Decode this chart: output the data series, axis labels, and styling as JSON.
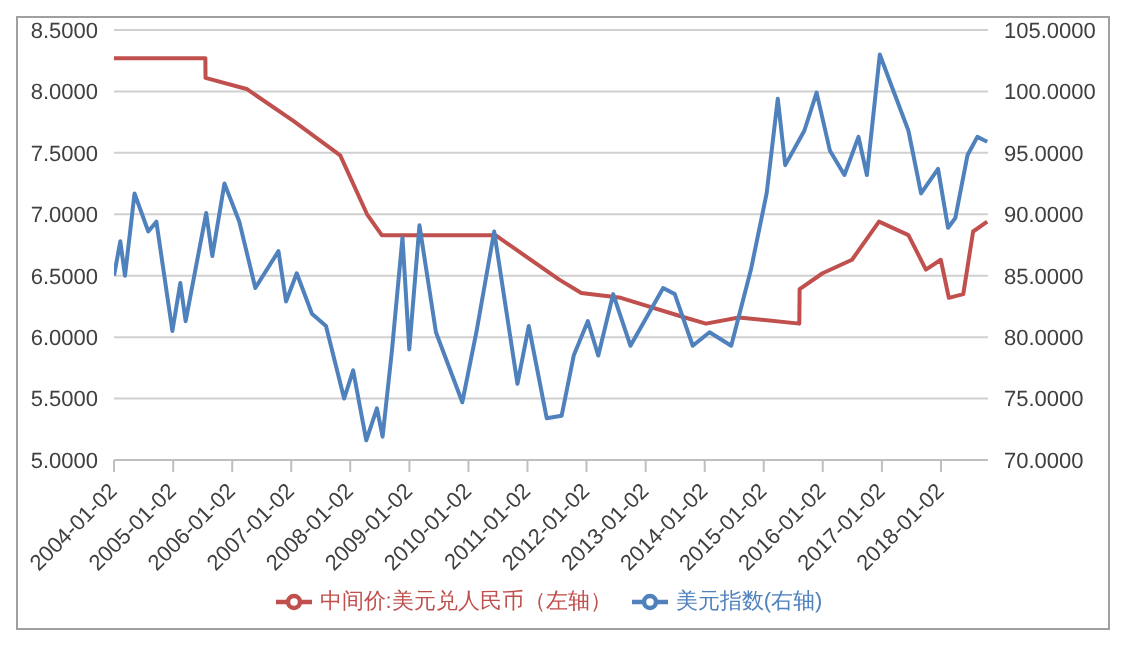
{
  "chart_data": {
    "type": "line",
    "xlim": [
      "2004-01-02",
      "2018-10-20"
    ],
    "xticks": [
      "2004-01-02",
      "2005-01-02",
      "2006-01-02",
      "2007-01-02",
      "2008-01-02",
      "2009-01-02",
      "2010-01-02",
      "2011-01-02",
      "2012-01-02",
      "2013-01-02",
      "2014-01-02",
      "2015-01-02",
      "2016-01-02",
      "2017-01-02",
      "2018-01-02"
    ],
    "ylim": [
      5,
      8.5
    ],
    "yticks": [
      {
        "value": 5,
        "label": "5.0000"
      },
      {
        "value": 5.5,
        "label": "5.5000"
      },
      {
        "value": 6,
        "label": "6.0000"
      },
      {
        "value": 6.5,
        "label": "6.5000"
      },
      {
        "value": 7,
        "label": "7.0000"
      },
      {
        "value": 7.5,
        "label": "7.5000"
      },
      {
        "value": 8,
        "label": "8.0000"
      },
      {
        "value": 8.5,
        "label": "8.5000"
      }
    ],
    "y2lim": [
      70,
      105
    ],
    "y2ticks": [
      {
        "value": 70,
        "label": "70.0000"
      },
      {
        "value": 75,
        "label": "75.0000"
      },
      {
        "value": 80,
        "label": "80.0000"
      },
      {
        "value": 85,
        "label": "85.0000"
      },
      {
        "value": 90,
        "label": "90.0000"
      },
      {
        "value": 95,
        "label": "95.0000"
      },
      {
        "value": 100,
        "label": "100.0000"
      },
      {
        "value": 105,
        "label": "105.0000"
      }
    ],
    "grid": "y",
    "legend": "bottom",
    "marker": "none",
    "line_style": "solid",
    "series": [
      {
        "name": "中间价:美元兑人民币（左轴）",
        "color": "#c0504d",
        "x": [
          "2004-01-02",
          "2005-07-20",
          "2005-07-21",
          "2006-04-01",
          "2007-01-15",
          "2007-11-01",
          "2008-04-15",
          "2008-07-15",
          "2010-06-18",
          "2011-07-15",
          "2011-12-01",
          "2012-08-01",
          "2013-09-01",
          "2014-01-10",
          "2014-08-01",
          "2015-08-10",
          "2015-08-12",
          "2016-01-01",
          "2016-07-01",
          "2016-12-15",
          "2017-06-15",
          "2017-10-01",
          "2018-01-01",
          "2018-02-20",
          "2018-05-20",
          "2018-07-20",
          "2018-10-15"
        ],
        "values": [
          8.27,
          8.27,
          8.11,
          8.02,
          7.76,
          7.48,
          7.0,
          6.83,
          6.83,
          6.47,
          6.36,
          6.32,
          6.16,
          6.11,
          6.16,
          6.11,
          6.39,
          6.52,
          6.63,
          6.94,
          6.83,
          6.55,
          6.63,
          6.32,
          6.35,
          6.86,
          6.94
        ]
      },
      {
        "name": "美元指数(右轴)",
        "color": "#4f81bd",
        "axis": "y2",
        "x": [
          "2004-01-02",
          "2004-02-10",
          "2004-03-10",
          "2004-05-08",
          "2004-08-01",
          "2004-09-20",
          "2004-12-28",
          "2005-02-15",
          "2005-03-20",
          "2005-07-25",
          "2005-09-01",
          "2005-11-15",
          "2006-02-15",
          "2006-05-25",
          "2006-10-15",
          "2006-12-01",
          "2007-02-05",
          "2007-05-10",
          "2007-08-05",
          "2007-11-25",
          "2008-01-20",
          "2008-04-10",
          "2008-06-15",
          "2008-07-20",
          "2008-09-15",
          "2008-11-20",
          "2009-01-01",
          "2009-03-05",
          "2009-06-15",
          "2009-11-25",
          "2010-02-20",
          "2010-06-10",
          "2010-11-01",
          "2011-01-10",
          "2011-05-01",
          "2011-08-01",
          "2011-10-15",
          "2012-01-10",
          "2012-03-15",
          "2012-06-15",
          "2012-09-30",
          "2013-04-20",
          "2013-07-01",
          "2013-10-20",
          "2014-02-01",
          "2014-06-15",
          "2014-10-15",
          "2015-01-20",
          "2015-03-30",
          "2015-05-15",
          "2015-09-10",
          "2015-11-25",
          "2016-02-15",
          "2016-05-15",
          "2016-08-10",
          "2016-10-01",
          "2016-12-20",
          "2017-03-01",
          "2017-06-15",
          "2017-09-01",
          "2017-12-15",
          "2018-02-15",
          "2018-04-01",
          "2018-06-15",
          "2018-08-15",
          "2018-10-15"
        ],
        "values": [
          85.0,
          87.8,
          85.0,
          91.7,
          88.6,
          89.4,
          80.5,
          84.4,
          81.3,
          90.1,
          86.6,
          92.5,
          89.4,
          84.0,
          87.0,
          82.9,
          85.2,
          81.9,
          80.9,
          75.0,
          77.3,
          71.6,
          74.2,
          71.9,
          78.8,
          88.1,
          79.0,
          89.1,
          80.4,
          74.7,
          80.4,
          88.6,
          76.2,
          80.9,
          73.4,
          73.6,
          78.5,
          81.3,
          78.5,
          83.5,
          79.3,
          84.0,
          83.5,
          79.3,
          80.4,
          79.3,
          85.5,
          91.7,
          99.4,
          94.0,
          96.8,
          99.9,
          95.2,
          93.2,
          96.3,
          93.2,
          103.0,
          100.5,
          96.8,
          91.7,
          93.7,
          88.9,
          89.7,
          94.8,
          96.3,
          95.9
        ]
      }
    ]
  }
}
